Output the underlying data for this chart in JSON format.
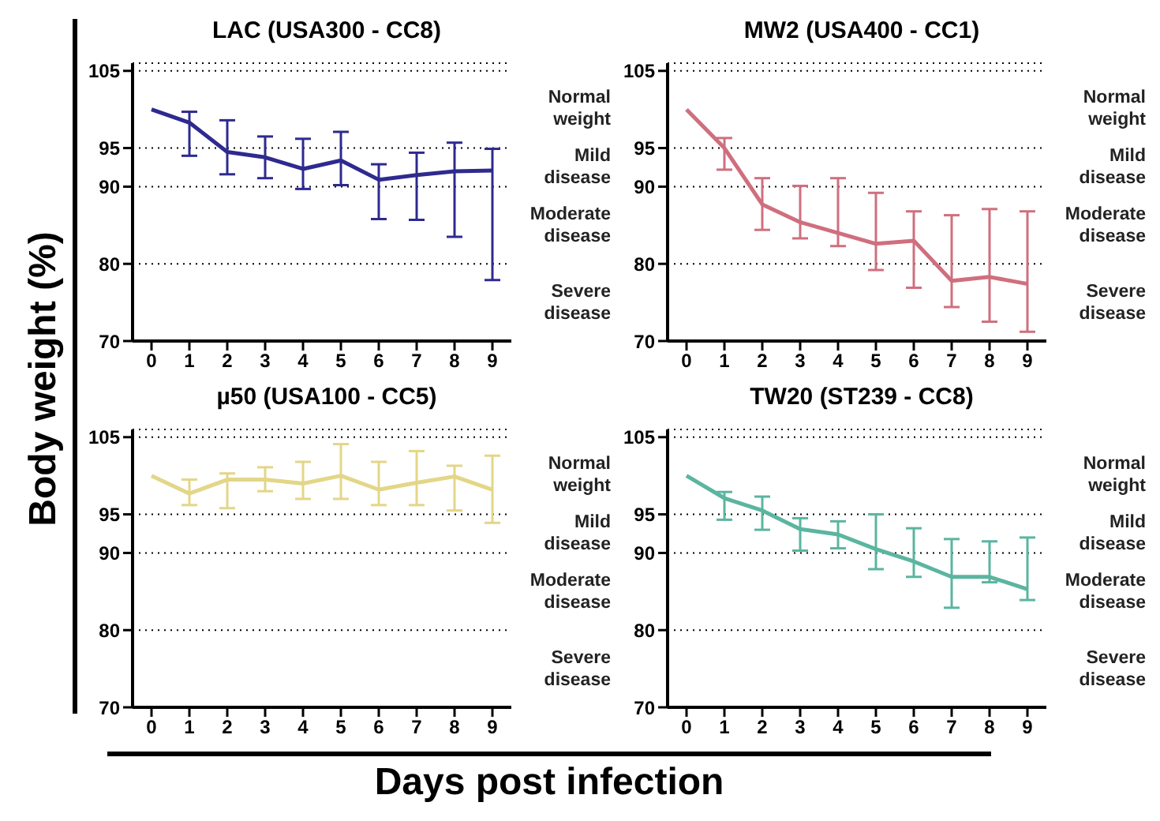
{
  "chart_data": [
    {
      "type": "line",
      "title": "LAC (USA300 - CC8)",
      "ylabel": "Body weight (%)",
      "xlabel": "Days post infection",
      "x": [
        0,
        1,
        2,
        3,
        4,
        5,
        6,
        7,
        8,
        9
      ],
      "xlim": [
        -0.5,
        9.5
      ],
      "xticks": [
        0,
        1,
        2,
        3,
        4,
        5,
        6,
        7,
        8,
        9
      ],
      "ylim": [
        70,
        106
      ],
      "yticks": [
        70,
        80,
        90,
        95,
        105
      ],
      "grid": "y",
      "marker": "none",
      "line_style": "solid",
      "series": [
        {
          "color": "#2e2a8f",
          "values": [
            100,
            98.3,
            94.5,
            93.8,
            92.3,
            93.4,
            90.9,
            91.5,
            92.0,
            92.1
          ],
          "errors": [
            null,
            [
              94.0,
              99.7
            ],
            [
              91.6,
              98.6
            ],
            [
              91.1,
              96.5
            ],
            [
              89.7,
              96.2
            ],
            [
              90.2,
              97.1
            ],
            [
              85.8,
              92.9
            ],
            [
              85.7,
              94.4
            ],
            [
              83.5,
              95.7
            ],
            [
              77.9,
              94.9
            ]
          ]
        }
      ],
      "annotations": [
        "Normal weight",
        "Mild disease",
        "Moderate disease",
        "Severe disease"
      ]
    },
    {
      "type": "line",
      "title": "MW2 (USA400 - CC1)",
      "x": [
        0,
        1,
        2,
        3,
        4,
        5,
        6,
        7,
        8,
        9
      ],
      "xlim": [
        -0.5,
        9.5
      ],
      "xticks": [
        0,
        1,
        2,
        3,
        4,
        5,
        6,
        7,
        8,
        9
      ],
      "ylim": [
        70,
        106
      ],
      "yticks": [
        70,
        80,
        90,
        95,
        105
      ],
      "grid": "y",
      "marker": "none",
      "line_style": "solid",
      "series": [
        {
          "color": "#cf6f7e",
          "values": [
            100,
            95.0,
            87.7,
            85.4,
            84.0,
            82.6,
            83.0,
            77.8,
            78.3,
            77.4
          ],
          "errors": [
            null,
            [
              92.2,
              96.3
            ],
            [
              84.4,
              91.1
            ],
            [
              83.3,
              90.1
            ],
            [
              82.3,
              91.1
            ],
            [
              79.2,
              89.2
            ],
            [
              76.9,
              86.8
            ],
            [
              74.4,
              86.3
            ],
            [
              72.5,
              87.1
            ],
            [
              71.2,
              86.8
            ]
          ]
        }
      ],
      "annotations": [
        "Normal weight",
        "Mild disease",
        "Moderate disease",
        "Severe disease"
      ]
    },
    {
      "type": "line",
      "title": "µ50 (USA100 - CC5)",
      "x": [
        0,
        1,
        2,
        3,
        4,
        5,
        6,
        7,
        8,
        9
      ],
      "xlim": [
        -0.5,
        9.5
      ],
      "xticks": [
        0,
        1,
        2,
        3,
        4,
        5,
        6,
        7,
        8,
        9
      ],
      "ylim": [
        70,
        106
      ],
      "yticks": [
        70,
        80,
        90,
        95,
        105
      ],
      "grid": "y",
      "marker": "none",
      "line_style": "solid",
      "series": [
        {
          "color": "#e3d687",
          "values": [
            100,
            97.7,
            99.5,
            99.5,
            99.0,
            100.0,
            98.2,
            99.1,
            99.9,
            98.2
          ],
          "errors": [
            null,
            [
              96.2,
              99.5
            ],
            [
              95.8,
              100.3
            ],
            [
              98.0,
              101.1
            ],
            [
              97.0,
              101.8
            ],
            [
              97.0,
              104.1
            ],
            [
              96.2,
              101.8
            ],
            [
              96.2,
              103.2
            ],
            [
              95.5,
              101.3
            ],
            [
              93.9,
              102.6
            ]
          ]
        }
      ],
      "annotations": [
        "Normal weight",
        "Mild disease",
        "Moderate disease",
        "Severe disease"
      ]
    },
    {
      "type": "line",
      "title": "TW20 (ST239 - CC8)",
      "x": [
        0,
        1,
        2,
        3,
        4,
        5,
        6,
        7,
        8,
        9
      ],
      "xlim": [
        -0.5,
        9.5
      ],
      "xticks": [
        0,
        1,
        2,
        3,
        4,
        5,
        6,
        7,
        8,
        9
      ],
      "ylim": [
        70,
        106
      ],
      "yticks": [
        70,
        80,
        90,
        95,
        105
      ],
      "grid": "y",
      "marker": "none",
      "line_style": "solid",
      "series": [
        {
          "color": "#5bb5a0",
          "values": [
            100,
            97.1,
            95.5,
            93.1,
            92.4,
            90.5,
            88.9,
            86.9,
            86.9,
            85.3
          ],
          "errors": [
            null,
            [
              94.3,
              97.9
            ],
            [
              93.0,
              97.3
            ],
            [
              90.3,
              94.5
            ],
            [
              90.6,
              94.1
            ],
            [
              87.9,
              95.0
            ],
            [
              86.9,
              93.2
            ],
            [
              82.9,
              91.8
            ],
            [
              86.2,
              91.5
            ],
            [
              83.9,
              92.0
            ]
          ]
        }
      ],
      "annotations": [
        "Normal weight",
        "Mild disease",
        "Moderate disease",
        "Severe disease"
      ]
    }
  ]
}
